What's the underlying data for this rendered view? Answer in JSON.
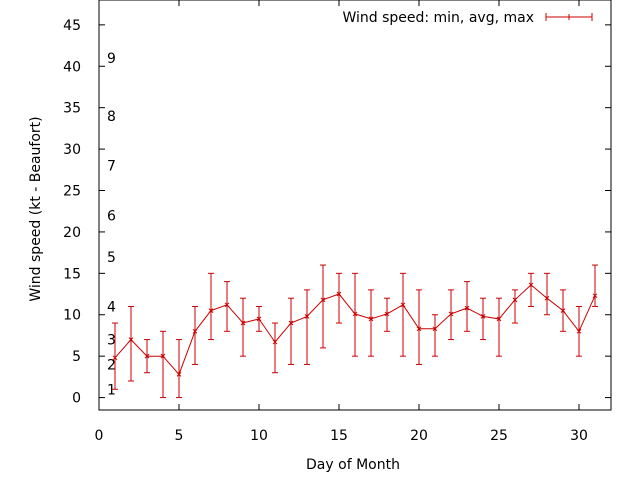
{
  "chart_data": {
    "type": "line",
    "xlabel": "Day of Month",
    "ylabel": "Wind speed (kt - Beaufort)",
    "xlim": [
      0,
      32
    ],
    "ylim": [
      -1.5,
      48
    ],
    "xticks": [
      "0",
      "5",
      "10",
      "15",
      "20",
      "25",
      "30"
    ],
    "yticks": [
      "0",
      "5",
      "10",
      "15",
      "20",
      "25",
      "30",
      "35",
      "40",
      "45"
    ],
    "grid": false,
    "legend_position": "top-right",
    "beaufort_labels": [
      {
        "label": "1",
        "kt": 1
      },
      {
        "label": "2",
        "kt": 4
      },
      {
        "label": "3",
        "kt": 7
      },
      {
        "label": "4",
        "kt": 11
      },
      {
        "label": "5",
        "kt": 17
      },
      {
        "label": "6",
        "kt": 22
      },
      {
        "label": "7",
        "kt": 28
      },
      {
        "label": "8",
        "kt": 34
      },
      {
        "label": "9",
        "kt": 41
      }
    ],
    "series": [
      {
        "name": "Wind speed: min, avg, max",
        "color": "#cc0000",
        "x": [
          1,
          2,
          3,
          4,
          5,
          6,
          7,
          8,
          9,
          10,
          11,
          12,
          13,
          14,
          15,
          16,
          17,
          18,
          19,
          20,
          21,
          22,
          23,
          24,
          25,
          26,
          27,
          28,
          29,
          30,
          31
        ],
        "avg": [
          4.8,
          7.0,
          5.0,
          5.0,
          2.8,
          8.0,
          10.5,
          11.2,
          9.0,
          9.5,
          6.7,
          9.0,
          9.8,
          11.8,
          12.5,
          10.1,
          9.5,
          10.1,
          11.2,
          8.3,
          8.3,
          10.1,
          10.8,
          9.8,
          9.5,
          11.8,
          13.6,
          12.0,
          10.5,
          8.0,
          12.3
        ],
        "min": [
          1,
          2,
          3,
          0,
          0,
          4,
          7,
          8,
          5,
          8,
          3,
          4,
          4,
          6,
          9,
          5,
          5,
          8,
          5,
          4,
          5,
          7,
          8,
          7,
          5,
          9,
          11,
          10,
          8,
          5,
          11
        ],
        "max": [
          9,
          11,
          7,
          8,
          7,
          11,
          15,
          14,
          12,
          11,
          9,
          12,
          13,
          16,
          15,
          15,
          13,
          12,
          15,
          13,
          10,
          13,
          14,
          12,
          12,
          13,
          15,
          15,
          13,
          11,
          16
        ]
      }
    ]
  }
}
